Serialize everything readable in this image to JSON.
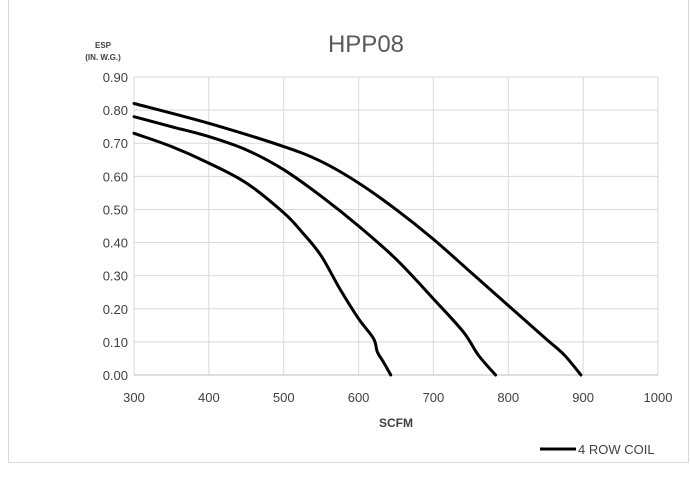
{
  "chart_data": {
    "type": "line",
    "title": "HPP08",
    "ylabel_line1": "ESP",
    "ylabel_line2": "(IN. W.G.)",
    "xlabel": "SCFM",
    "xlim": [
      300,
      1000
    ],
    "ylim": [
      0,
      0.9
    ],
    "x_ticks": [
      "300",
      "400",
      "500",
      "600",
      "700",
      "800",
      "900",
      "1000"
    ],
    "y_ticks": [
      "0.00",
      "0.10",
      "0.20",
      "0.30",
      "0.40",
      "0.50",
      "0.60",
      "0.70",
      "0.80",
      "0.90"
    ],
    "grid": true,
    "legend_position": "bottom-right",
    "legend_label": "4 ROW COIL",
    "series": [
      {
        "color": "#000000",
        "points": [
          [
            300,
            0.73
          ],
          [
            350,
            0.69
          ],
          [
            400,
            0.64
          ],
          [
            450,
            0.58
          ],
          [
            500,
            0.49
          ],
          [
            525,
            0.43
          ],
          [
            550,
            0.36
          ],
          [
            575,
            0.26
          ],
          [
            600,
            0.17
          ],
          [
            620,
            0.11
          ],
          [
            625,
            0.07
          ],
          [
            633,
            0.04
          ],
          [
            643,
            0.0
          ]
        ]
      },
      {
        "color": "#000000",
        "points": [
          [
            300,
            0.78
          ],
          [
            350,
            0.75
          ],
          [
            400,
            0.72
          ],
          [
            450,
            0.68
          ],
          [
            500,
            0.62
          ],
          [
            550,
            0.54
          ],
          [
            600,
            0.45
          ],
          [
            650,
            0.35
          ],
          [
            700,
            0.23
          ],
          [
            740,
            0.13
          ],
          [
            760,
            0.06
          ],
          [
            783,
            0.0
          ]
        ]
      },
      {
        "color": "#000000",
        "points": [
          [
            300,
            0.82
          ],
          [
            400,
            0.76
          ],
          [
            500,
            0.69
          ],
          [
            550,
            0.645
          ],
          [
            600,
            0.58
          ],
          [
            650,
            0.5
          ],
          [
            700,
            0.41
          ],
          [
            750,
            0.31
          ],
          [
            800,
            0.21
          ],
          [
            850,
            0.11
          ],
          [
            875,
            0.06
          ],
          [
            897,
            0.0
          ]
        ]
      }
    ]
  }
}
